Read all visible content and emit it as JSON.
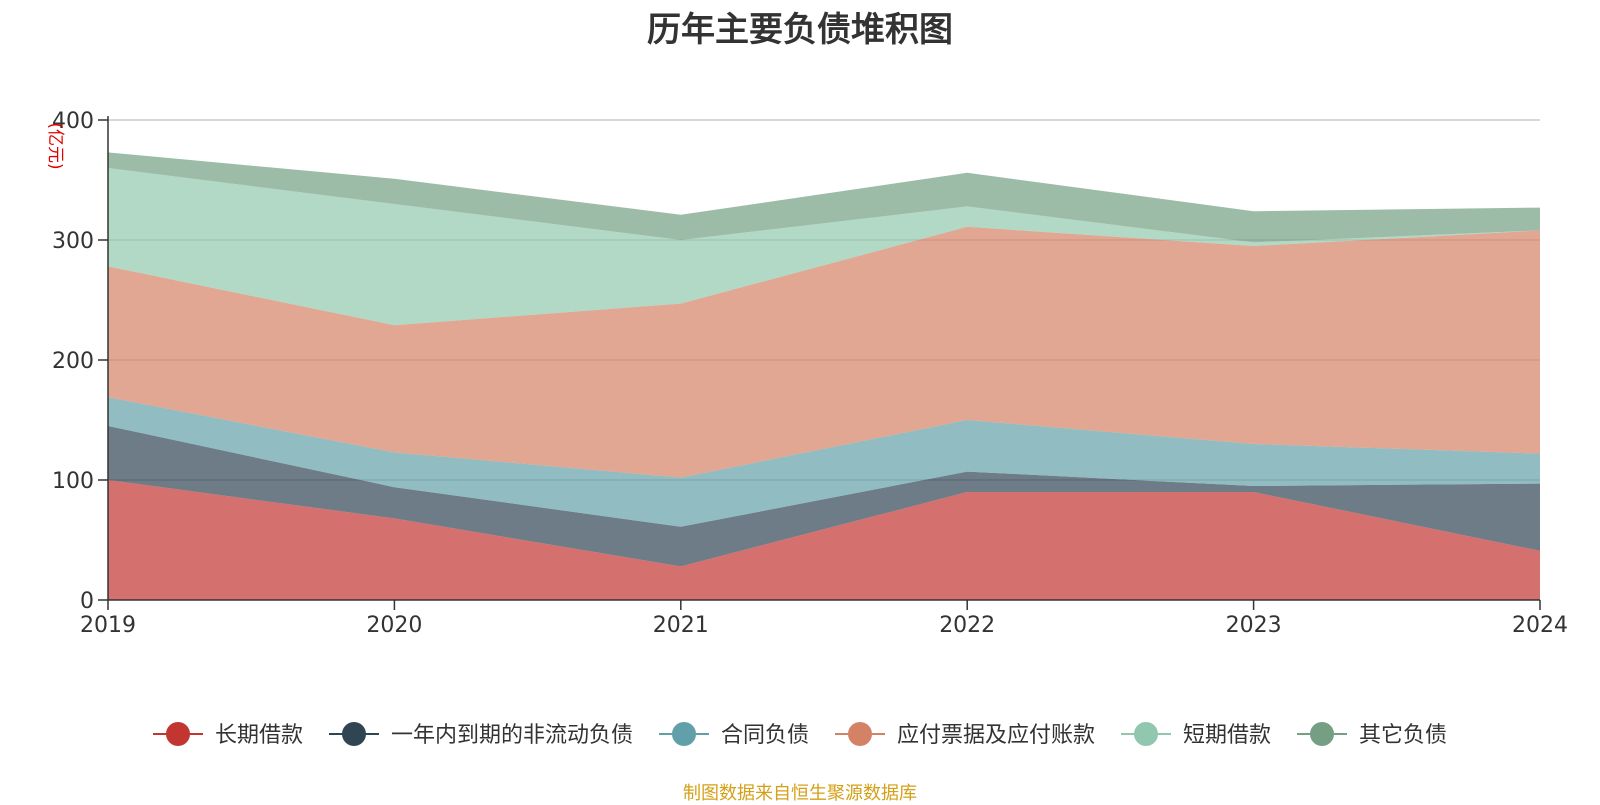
{
  "title": "历年主要负债堆积图",
  "source_note": "制图数据来自恒生聚源数据库",
  "chart_data": {
    "type": "area",
    "stacked": true,
    "x": [
      "2019",
      "2020",
      "2021",
      "2022",
      "2023",
      "2024"
    ],
    "ylabel": "(亿元)",
    "ylim": [
      0,
      400
    ],
    "yticks": [
      0,
      100,
      200,
      300,
      400
    ],
    "grid": true,
    "legend_position": "bottom",
    "series": [
      {
        "name": "长期借款",
        "color": "#c23531",
        "values": [
          100,
          68,
          28,
          90,
          90,
          41
        ]
      },
      {
        "name": "一年内到期的非流动负债",
        "color": "#2f4554",
        "values": [
          45,
          26,
          33,
          17,
          5,
          56
        ]
      },
      {
        "name": "合同负债",
        "color": "#61a0a8",
        "values": [
          24,
          29,
          41,
          43,
          35,
          25
        ]
      },
      {
        "name": "应付票据及应付账款",
        "color": "#d48265",
        "values": [
          109,
          106,
          145,
          161,
          165,
          186
        ]
      },
      {
        "name": "短期借款",
        "color": "#91c7ae",
        "values": [
          82,
          101,
          53,
          17,
          3,
          0
        ]
      },
      {
        "name": "其它负债",
        "color": "#749f83",
        "values": [
          13,
          21,
          21,
          28,
          26,
          19
        ]
      }
    ]
  }
}
